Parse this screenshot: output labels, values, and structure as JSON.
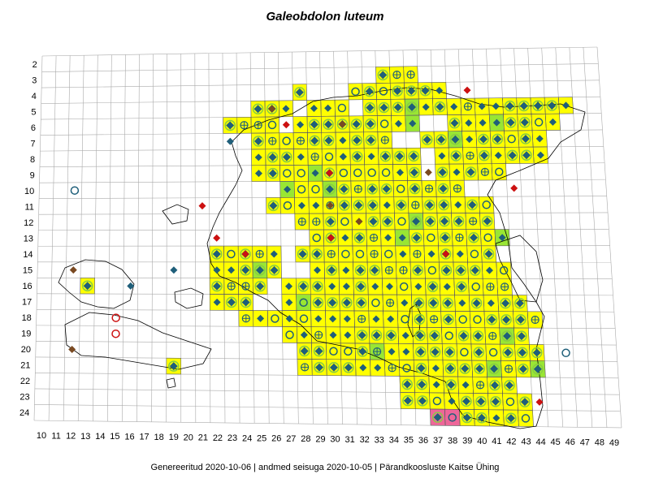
{
  "map": {
    "title": "Galeobdolon luteum",
    "footer": "Genereeritud 2020-10-06  |  andmed seisuga 2020-10-05  |  Pärandkoosluste Kaitse Ühing",
    "row_labels": [
      "2",
      "3",
      "4",
      "5",
      "6",
      "7",
      "8",
      "9",
      "10",
      "11",
      "12",
      "13",
      "14",
      "15",
      "16",
      "17",
      "18",
      "19",
      "20",
      "21",
      "22",
      "23",
      "24"
    ],
    "col_labels": [
      "10",
      "11",
      "12",
      "13",
      "14",
      "15",
      "16",
      "17",
      "18",
      "19",
      "20",
      "21",
      "22",
      "23",
      "24",
      "25",
      "26",
      "27",
      "28",
      "29",
      "30",
      "31",
      "32",
      "33",
      "34",
      "35",
      "36",
      "37",
      "38",
      "39",
      "40",
      "41",
      "42",
      "43",
      "44",
      "45",
      "46",
      "47",
      "48",
      "49"
    ],
    "colors": {
      "occupied_fill": "#ffff00",
      "highlight_fill": "#99e633",
      "pink_fill": "#ee6699",
      "grid_line": "#aaaaaa",
      "coast_line": "#000000",
      "symbol_blue": "#1f5f7a",
      "symbol_green": "#88cc44",
      "symbol_red": "#cc1111",
      "symbol_brown": "#7a4a22"
    },
    "legend_symbols": [
      "blue-diamond-icon",
      "ringed-diamond-icon",
      "hollow-circle-icon",
      "crossed-circle-icon",
      "red-diamond-icon",
      "brown-diamond-icon",
      "plus-icon"
    ]
  }
}
